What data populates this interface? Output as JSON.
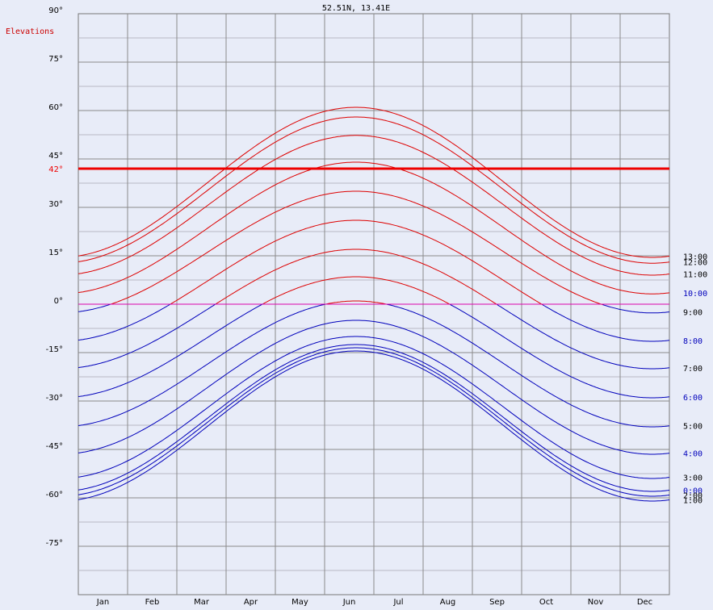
{
  "chart_data": {
    "type": "line",
    "title": "52.51N,  13.41E",
    "ylabel": "Elevations",
    "ylim": [
      -90,
      90
    ],
    "yticks": [
      90,
      75,
      60,
      45,
      30,
      15,
      0,
      -15,
      -30,
      -45,
      -60,
      -75
    ],
    "ytick_labels": [
      "90°",
      "75°",
      "60°",
      "45°",
      "30°",
      "15°",
      "0°",
      "-15°",
      "-30°",
      "-45°",
      "-60°",
      "-75°"
    ],
    "months": [
      "Jan",
      "Feb",
      "Mar",
      "Apr",
      "May",
      "Jun",
      "Jul",
      "Aug",
      "Sep",
      "Oct",
      "Nov",
      "Dec"
    ],
    "grid": true,
    "threshold": {
      "value": 42,
      "label": "42°",
      "color": "#ee0000"
    },
    "zero_line_color": "#dd00aa",
    "above_color": "#dd0000",
    "below_color": "#0000bb",
    "series": [
      {
        "name": "13:00",
        "jan": 14.5,
        "peak": 61.0,
        "label_color": "#000000"
      },
      {
        "name": "12:00",
        "jan": 12.7,
        "peak": 58.0,
        "label_color": "#000000"
      },
      {
        "name": "11:00",
        "jan": 9.0,
        "peak": 52.3,
        "label_color": "#000000"
      },
      {
        "name": "10:00",
        "jan": 3.2,
        "peak": 44.0,
        "label_color": "#0000bb"
      },
      {
        "name": "9:00",
        "jan": -2.7,
        "peak": 35.0,
        "label_color": "#000000"
      },
      {
        "name": "8:00",
        "jan": -11.5,
        "peak": 26.0,
        "label_color": "#0000bb"
      },
      {
        "name": "7:00",
        "jan": -20.0,
        "peak": 17.0,
        "label_color": "#000000"
      },
      {
        "name": "6:00",
        "jan": -29.0,
        "peak": 8.5,
        "label_color": "#0000bb"
      },
      {
        "name": "5:00",
        "jan": -38.0,
        "peak": 1.0,
        "label_color": "#000000"
      },
      {
        "name": "4:00",
        "jan": -46.5,
        "peak": -5.0,
        "label_color": "#0000bb"
      },
      {
        "name": "3:00",
        "jan": -54.0,
        "peak": -10.0,
        "label_color": "#000000"
      },
      {
        "name": "0:00",
        "jan": -58.0,
        "peak": -12.5,
        "label_color": "#0000bb"
      },
      {
        "name": "2:00",
        "jan": -59.5,
        "peak": -13.5,
        "label_color": "#000000"
      },
      {
        "name": "1:00",
        "jan": -61.0,
        "peak": -14.5,
        "label_color": "#000000"
      }
    ]
  }
}
